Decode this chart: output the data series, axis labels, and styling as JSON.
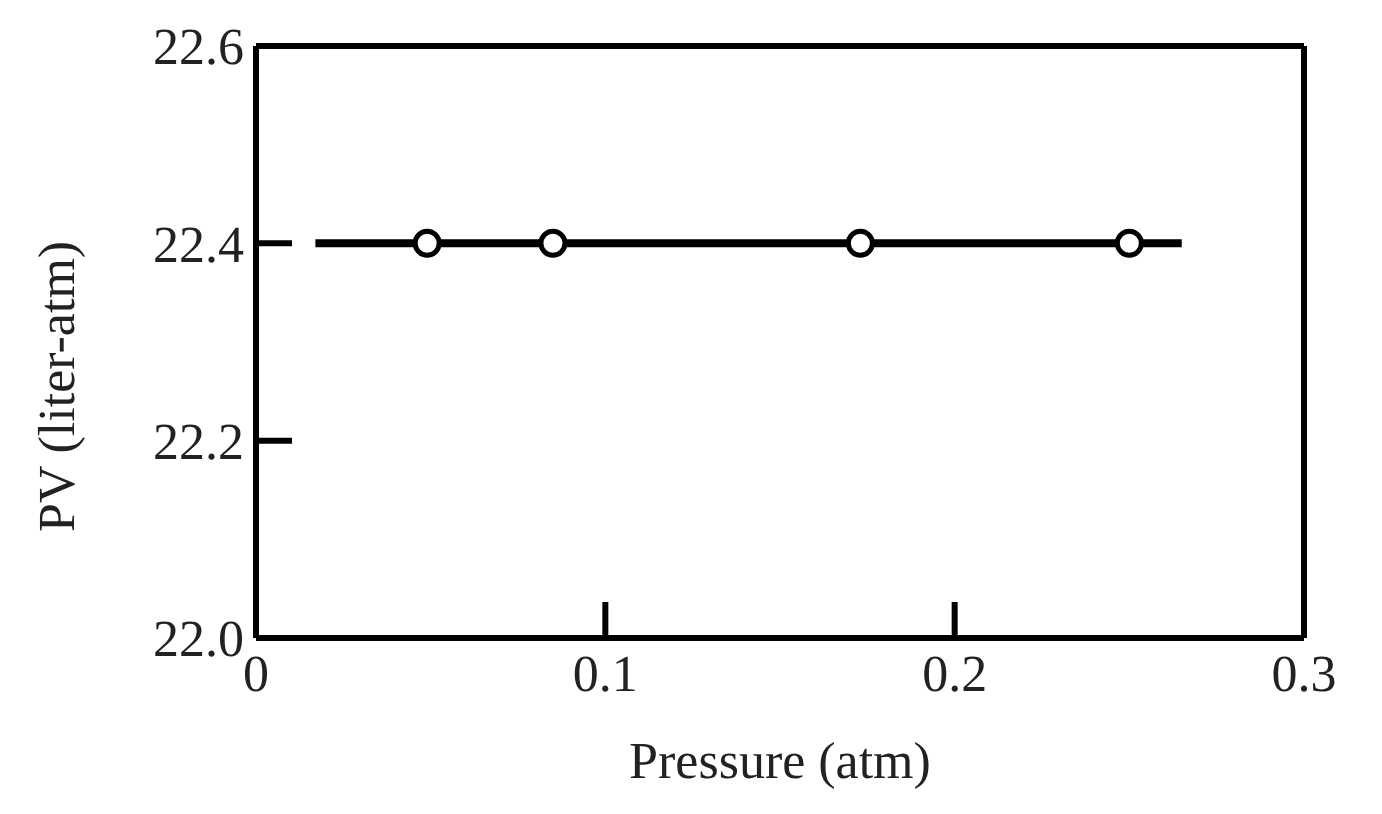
{
  "chart_data": {
    "type": "scatter",
    "xlabel": "Pressure (atm)",
    "ylabel": "PV (liter-atm)",
    "xlim": [
      0,
      0.3
    ],
    "xticks": [
      0,
      0.1,
      0.2,
      0.3
    ],
    "ylim": [
      22.0,
      22.6
    ],
    "yticks": [
      {
        "value": 22.0,
        "label": "22.0"
      },
      {
        "value": 22.2,
        "label": "22.2"
      },
      {
        "value": 22.4,
        "label": "22.4"
      },
      {
        "value": 22.6,
        "label": "22.6"
      }
    ],
    "marker": "circle",
    "series": [
      {
        "type": "line",
        "color": "#000000",
        "x": [
          0.017,
          0.265
        ],
        "values": [
          22.4,
          22.4
        ],
        "marker": "none",
        "line_style": "solid"
      },
      {
        "color": "#000000",
        "x": [
          0.049,
          0.085,
          0.173,
          0.25
        ],
        "values": [
          22.4,
          22.4,
          22.4,
          22.4
        ]
      }
    ]
  }
}
